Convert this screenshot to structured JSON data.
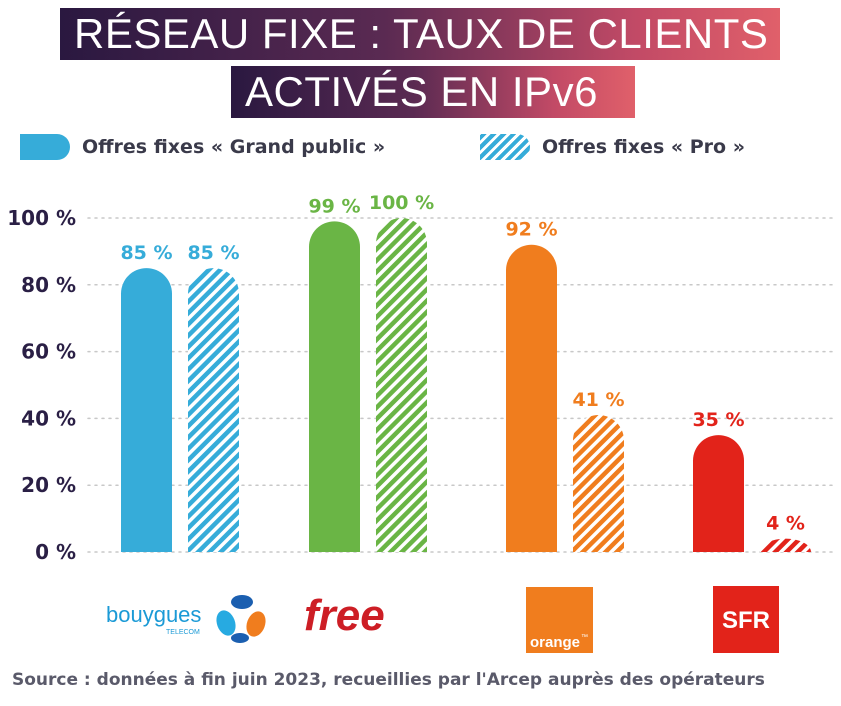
{
  "title": {
    "line1": "RÉSEAU FIXE : TAUX DE CLIENTS",
    "line2": "ACTIVÉS EN IPv6"
  },
  "legend": {
    "grand_public": "Offres fixes « Grand public »",
    "pro": "Offres fixes « Pro »"
  },
  "colors": {
    "bouygues": "#36acd9",
    "free": "#6ab545",
    "orange": "#f07d1e",
    "sfr": "#e2231a",
    "axis_text": "#2a1f45",
    "grid": "#c8c8c8"
  },
  "chart_data": {
    "type": "bar",
    "categories": [
      "bouygues",
      "free",
      "orange",
      "SFR"
    ],
    "series": [
      {
        "name": "Offres fixes « Grand public »",
        "values": [
          85,
          99,
          92,
          35
        ],
        "labels": [
          "85 %",
          "99 %",
          "92 %",
          "35 %"
        ],
        "pattern": "solid"
      },
      {
        "name": "Offres fixes « Pro »",
        "values": [
          85,
          100,
          41,
          4
        ],
        "labels": [
          "85 %",
          "100 %",
          "41 %",
          "4 %"
        ],
        "pattern": "hatched"
      }
    ],
    "yticks": [
      "0 %",
      "20 %",
      "40 %",
      "60 %",
      "80 %",
      "100 %"
    ],
    "ytick_values": [
      0,
      20,
      40,
      60,
      80,
      100
    ],
    "ylim": [
      0,
      100
    ],
    "grid": true,
    "legend_position": "top"
  },
  "logos": {
    "bouygues_main": "bouygues",
    "bouygues_sub": "TELECOM",
    "free": "free",
    "orange": "orange",
    "orange_tm": "™",
    "sfr": "SFR"
  },
  "source": "Source : données à fin juin 2023, recueillies par l'Arcep auprès des opérateurs"
}
